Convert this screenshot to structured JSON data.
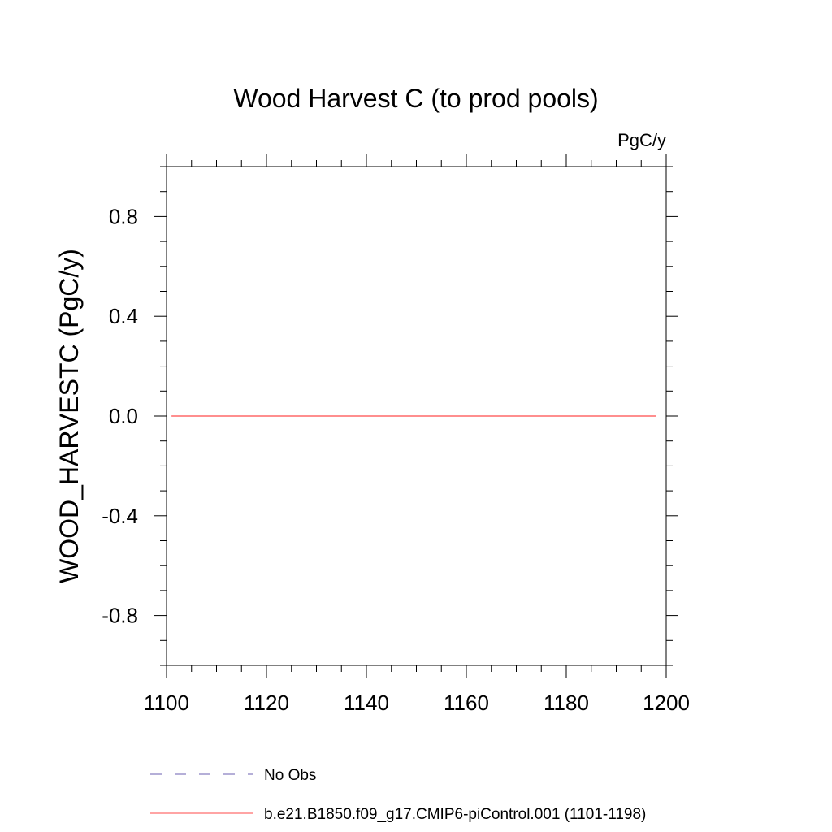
{
  "chart_data": {
    "type": "line",
    "title": "Wood Harvest C (to prod pools)",
    "units_label": "PgC/y",
    "xlabel": "",
    "ylabel": "WOOD_HARVESTC  (PgC/y)",
    "xlim": [
      1100,
      1200
    ],
    "ylim": [
      -1.0,
      1.0
    ],
    "x_ticks": [
      1100,
      1120,
      1140,
      1160,
      1180,
      1200
    ],
    "x_tick_labels": [
      "1100",
      "1120",
      "1140",
      "1160",
      "1180",
      "1200"
    ],
    "y_ticks": [
      -0.8,
      -0.4,
      0.0,
      0.4,
      0.8
    ],
    "y_tick_labels": [
      "-0.8",
      "-0.4",
      "0.0",
      "0.4",
      "0.8"
    ],
    "grid": false,
    "legend_position": "bottom",
    "series": [
      {
        "name": "No Obs",
        "color": "#6b5fb0",
        "dash": "dashed",
        "x": [],
        "y": []
      },
      {
        "name": "b.e21.B1850.f09_g17.CMIP6-piControl.001 (1101-1198)",
        "color": "#ff4a4a",
        "dash": "solid",
        "x": [
          1101,
          1198
        ],
        "y": [
          0.0,
          0.0
        ]
      }
    ]
  }
}
